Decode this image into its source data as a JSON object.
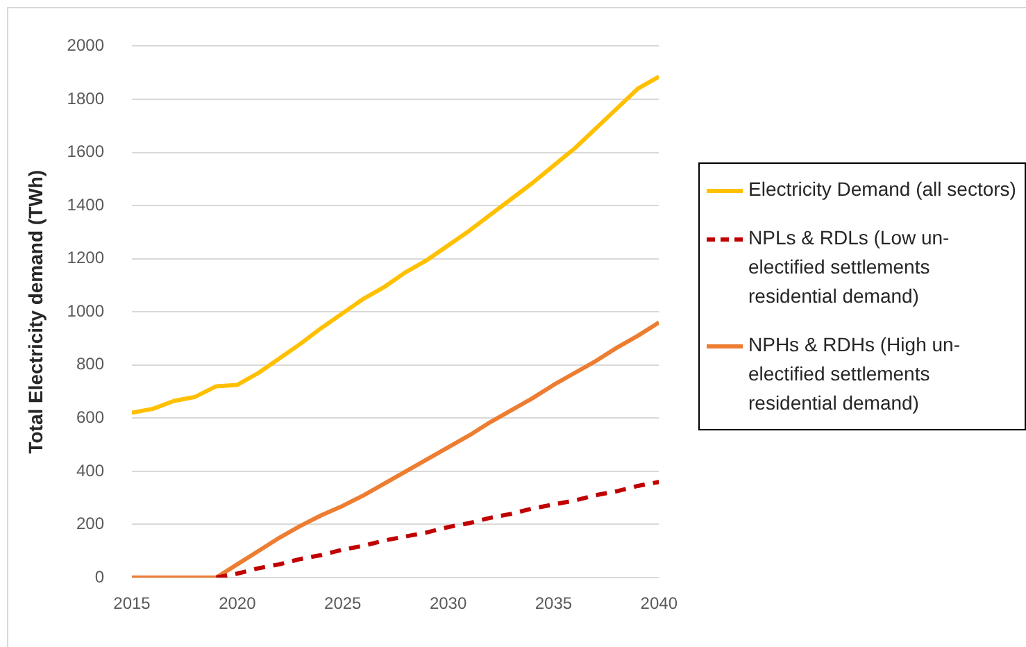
{
  "chart_data": {
    "type": "line",
    "ylabel": "Total Electricity demand (TWh)",
    "x": [
      2015,
      2016,
      2017,
      2018,
      2019,
      2020,
      2021,
      2022,
      2023,
      2024,
      2025,
      2026,
      2027,
      2028,
      2029,
      2030,
      2031,
      2032,
      2033,
      2034,
      2035,
      2036,
      2037,
      2038,
      2039,
      2040
    ],
    "series": [
      {
        "name": "Electricity Demand (all sectors)",
        "color": "#ffc000",
        "line_style": "solid",
        "values": [
          620,
          635,
          665,
          680,
          720,
          725,
          770,
          825,
          880,
          940,
          995,
          1050,
          1095,
          1150,
          1195,
          1250,
          1305,
          1365,
          1425,
          1485,
          1550,
          1615,
          1690,
          1765,
          1840,
          1885
        ]
      },
      {
        "name": "NPLs & RDLs (Low un-electified settlements residential demand)",
        "color": "#c00000",
        "line_style": "dashed",
        "values": [
          null,
          null,
          null,
          null,
          0,
          15,
          35,
          50,
          70,
          85,
          105,
          120,
          140,
          155,
          170,
          190,
          205,
          225,
          240,
          260,
          275,
          290,
          310,
          325,
          345,
          360
        ]
      },
      {
        "name": "NPHs & RDHs (High un-electified settlements residential demand)",
        "color": "#ed7d31",
        "line_style": "solid",
        "values": [
          0,
          0,
          0,
          0,
          0,
          50,
          100,
          150,
          195,
          235,
          270,
          310,
          355,
          400,
          445,
          490,
          535,
          585,
          630,
          675,
          725,
          770,
          815,
          865,
          910,
          960
        ]
      }
    ],
    "xlim": [
      2015,
      2040
    ],
    "xticks": [
      2015,
      2020,
      2025,
      2030,
      2035,
      2040
    ],
    "ylim": [
      0,
      2000
    ],
    "yticks": [
      0,
      200,
      400,
      600,
      800,
      1000,
      1200,
      1400,
      1600,
      1800,
      2000
    ],
    "grid": "y",
    "legend": "right",
    "marker": "none"
  }
}
